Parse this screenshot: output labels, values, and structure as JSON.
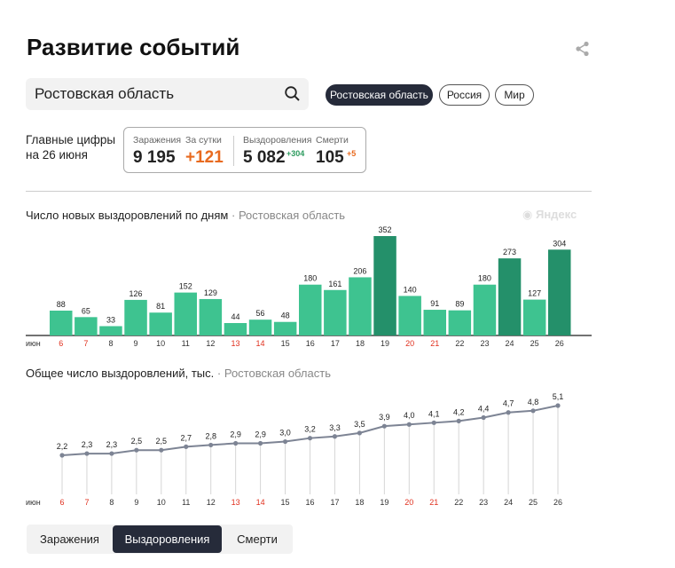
{
  "header": {
    "title": "Развитие событий"
  },
  "search": {
    "value": "Ростовская область"
  },
  "region_buttons": [
    {
      "label": "Ростовская область",
      "active": true
    },
    {
      "label": "Россия",
      "active": false
    },
    {
      "label": "Мир",
      "active": false
    }
  ],
  "summary": {
    "label_line1": "Главные цифры",
    "label_line2": "на 26 июня",
    "infections_label": "Заражения",
    "infections_value": "9 195",
    "daily_label": "За сутки",
    "daily_value": "+121",
    "recoveries_label": "Выздоровления",
    "recoveries_value": "5 082",
    "recoveries_delta": "+304",
    "deaths_label": "Смерти",
    "deaths_value": "105",
    "deaths_delta": "+5"
  },
  "colors": {
    "accent_dark": "#262b3a",
    "orange": "#e86a1f",
    "green_text": "#2c9b5e",
    "bar_light": "#3ec390",
    "bar_dark": "#24906a",
    "line": "#7d8494",
    "weekend": "#e0301e"
  },
  "chart1": {
    "title": "Число новых выздоровлений по дням",
    "separator": "·",
    "region": "Ростовская область",
    "watermark": "Яндекс"
  },
  "chart2": {
    "title": "Общее число выздоровлений, тыс.",
    "separator": "·",
    "region": "Ростовская область"
  },
  "chart_data": [
    {
      "type": "bar",
      "title": "Число новых выздоровлений по дням",
      "month_label": "июн",
      "categories": [
        "6",
        "7",
        "8",
        "9",
        "10",
        "11",
        "12",
        "13",
        "14",
        "15",
        "16",
        "17",
        "18",
        "19",
        "20",
        "21",
        "22",
        "23",
        "24",
        "25",
        "26"
      ],
      "values": [
        88,
        65,
        33,
        126,
        81,
        152,
        129,
        44,
        56,
        48,
        180,
        161,
        206,
        352,
        140,
        91,
        89,
        180,
        273,
        127,
        304
      ],
      "weekend": [
        true,
        true,
        false,
        false,
        false,
        false,
        false,
        true,
        true,
        false,
        false,
        false,
        false,
        false,
        true,
        true,
        false,
        false,
        false,
        false,
        false
      ],
      "ylim": [
        0,
        352
      ]
    },
    {
      "type": "line",
      "title": "Общее число выздоровлений, тыс.",
      "month_label": "июн",
      "categories": [
        "6",
        "7",
        "8",
        "9",
        "10",
        "11",
        "12",
        "13",
        "14",
        "15",
        "16",
        "17",
        "18",
        "19",
        "20",
        "21",
        "22",
        "23",
        "24",
        "25",
        "26"
      ],
      "values": [
        2.2,
        2.3,
        2.3,
        2.5,
        2.5,
        2.7,
        2.8,
        2.9,
        2.9,
        3.0,
        3.2,
        3.3,
        3.5,
        3.9,
        4.0,
        4.1,
        4.2,
        4.4,
        4.7,
        4.8,
        5.1
      ],
      "labels": [
        "2,2",
        "2,3",
        "2,3",
        "2,5",
        "2,5",
        "2,7",
        "2,8",
        "2,9",
        "2,9",
        "3,0",
        "3,2",
        "3,3",
        "3,5",
        "3,9",
        "4,0",
        "4,1",
        "4,2",
        "4,4",
        "4,7",
        "4,8",
        "5,1"
      ],
      "weekend": [
        true,
        true,
        false,
        false,
        false,
        false,
        false,
        true,
        true,
        false,
        false,
        false,
        false,
        false,
        true,
        true,
        false,
        false,
        false,
        false,
        false
      ],
      "ylim": [
        0,
        5.1
      ]
    }
  ],
  "bottom_tabs": [
    {
      "label": "Заражения",
      "active": false
    },
    {
      "label": "Выздоровления",
      "active": true
    },
    {
      "label": "Смерти",
      "active": false
    }
  ]
}
